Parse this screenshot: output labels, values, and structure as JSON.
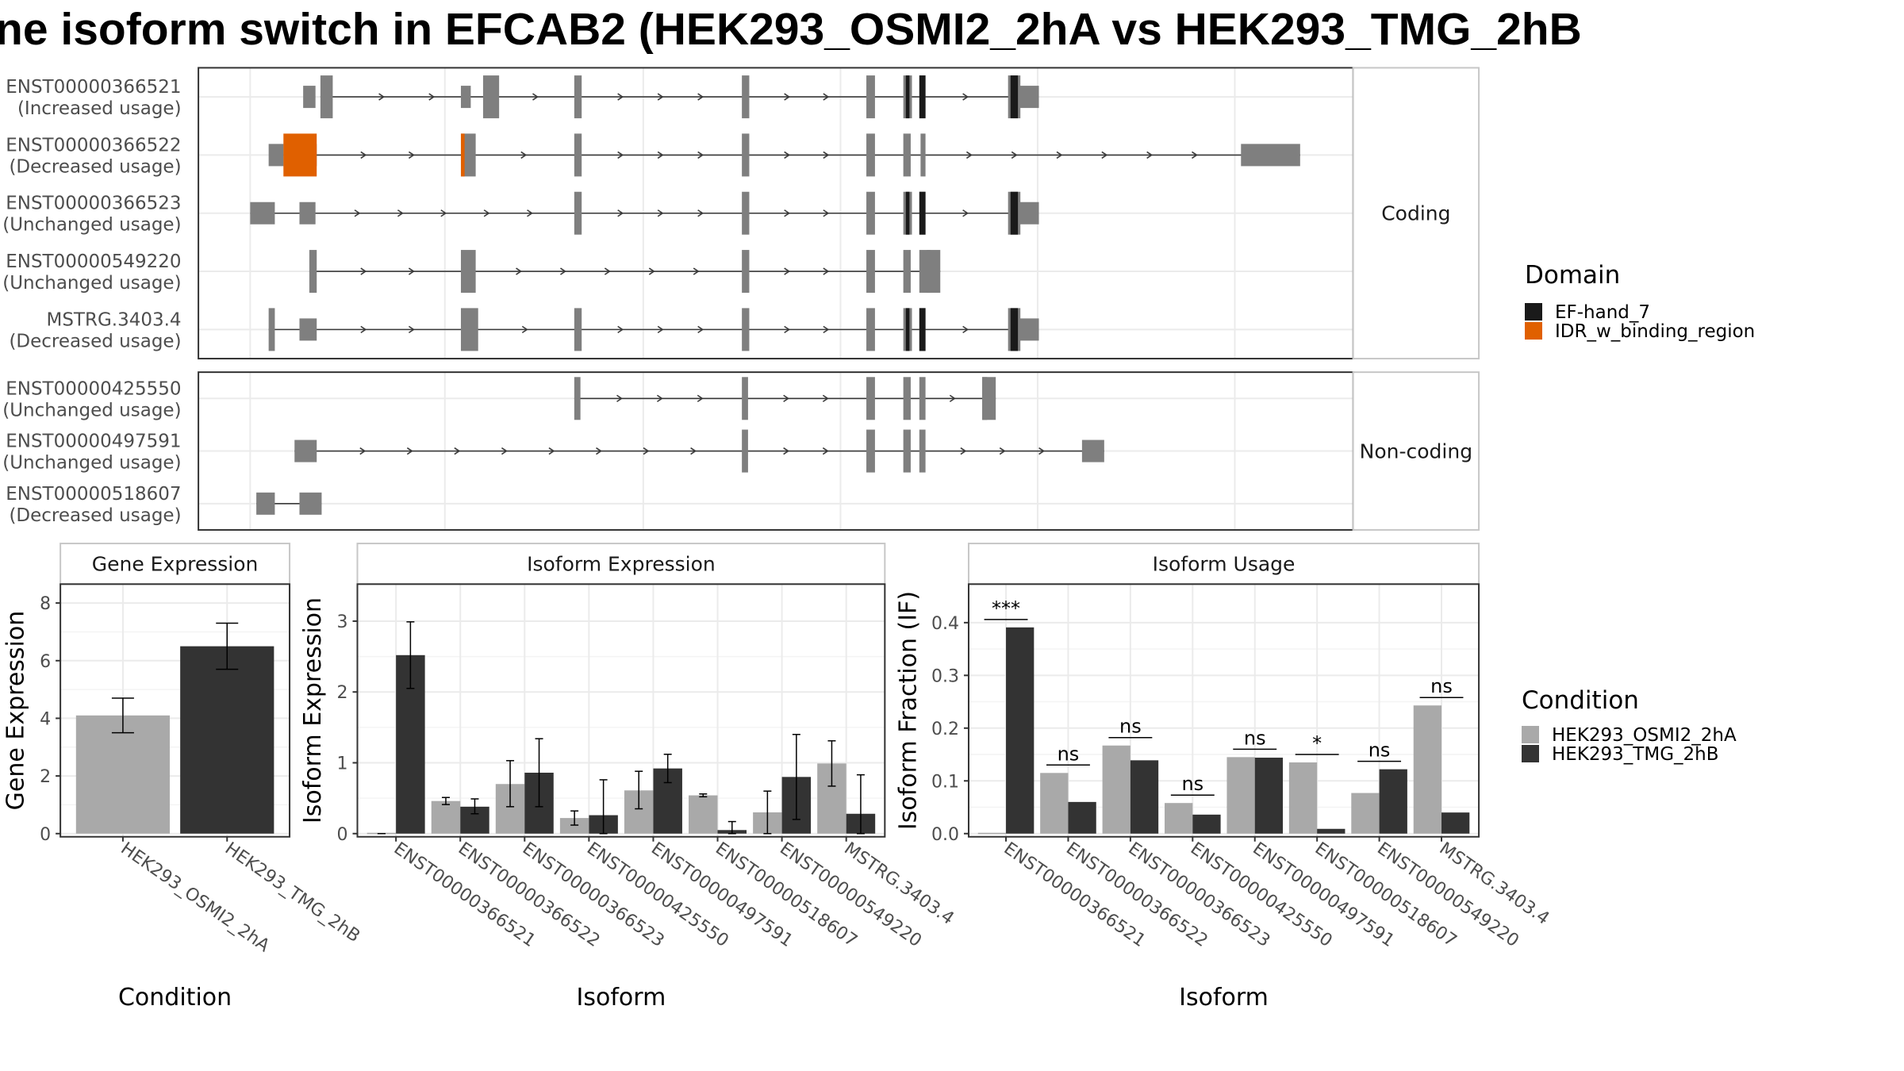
{
  "title": "ne isoform switch in EFCAB2 (HEK293_OSMI2_2hA vs HEK293_TMG_2hB",
  "colors": {
    "exon": "#7f7f7f",
    "line": "#3a3a3a",
    "ef_hand": "#1a1a1a",
    "idr": "#e06000",
    "cond1": "#a9a9a9",
    "cond2": "#333333",
    "grid": "#ebebeb",
    "panel_border": "#333333",
    "strip_border": "#c7c7c7"
  },
  "structure": {
    "coding_label": "Coding",
    "noncoding_label": "Non-coding",
    "coding": [
      {
        "name": "ENST00000366521",
        "usage": "(Increased usage)",
        "exons": [
          [
            260,
            270
          ],
          [
            392,
            405
          ],
          [
            466,
            472
          ],
          [
            602,
            608
          ],
          [
            703,
            710
          ],
          [
            733,
            740
          ],
          [
            746,
            751
          ],
          [
            818,
            828
          ],
          [
            826,
            843
          ]
        ],
        "domains": [
          {
            "type": "ef_hand",
            "range": [
              735,
              738
            ]
          },
          {
            "type": "ef_hand",
            "range": [
              746,
              751
            ]
          },
          {
            "type": "ef_hand",
            "range": [
              820,
              826
            ]
          }
        ],
        "thin": [
          [
            246,
            256
          ],
          [
            374,
            382
          ]
        ]
      },
      {
        "name": "ENST00000366522",
        "usage": "(Decreased usage)",
        "exons": [
          [
            230,
            257
          ],
          [
            374,
            386
          ],
          [
            466,
            472
          ],
          [
            602,
            608
          ],
          [
            703,
            710
          ],
          [
            733,
            739
          ],
          [
            747,
            751
          ],
          [
            1007,
            1055
          ]
        ],
        "domains": [
          {
            "type": "idr",
            "range": [
              230,
              257
            ]
          },
          {
            "type": "idr",
            "range": [
              374,
              377
            ]
          }
        ],
        "thin": [
          [
            218,
            230
          ]
        ]
      },
      {
        "name": "ENST00000366523",
        "usage": "(Unchanged usage)",
        "exons": [
          [
            203,
            223
          ],
          [
            243,
            256
          ],
          [
            466,
            472
          ],
          [
            602,
            608
          ],
          [
            703,
            710
          ],
          [
            733,
            740
          ],
          [
            746,
            751
          ],
          [
            818,
            828
          ],
          [
            826,
            843
          ]
        ],
        "domains": [
          {
            "type": "ef_hand",
            "range": [
              735,
              738
            ]
          },
          {
            "type": "ef_hand",
            "range": [
              746,
              751
            ]
          },
          {
            "type": "ef_hand",
            "range": [
              820,
              826
            ]
          }
        ],
        "thin": []
      },
      {
        "name": "ENST00000549220",
        "usage": "(Unchanged usage)",
        "exons": [
          [
            251,
            257
          ],
          [
            374,
            386
          ],
          [
            602,
            608
          ],
          [
            703,
            710
          ],
          [
            733,
            739
          ],
          [
            746,
            755
          ],
          [
            752,
            763
          ]
        ],
        "domains": [],
        "thin": []
      },
      {
        "name": "MSTRG.3403.4",
        "usage": "(Decreased usage)",
        "exons": [
          [
            218,
            223
          ],
          [
            243,
            257
          ],
          [
            374,
            388
          ],
          [
            466,
            472
          ],
          [
            602,
            608
          ],
          [
            703,
            710
          ],
          [
            733,
            740
          ],
          [
            746,
            751
          ],
          [
            818,
            828
          ],
          [
            826,
            843
          ]
        ],
        "domains": [
          {
            "type": "ef_hand",
            "range": [
              735,
              738
            ]
          },
          {
            "type": "ef_hand",
            "range": [
              746,
              751
            ]
          },
          {
            "type": "ef_hand",
            "range": [
              820,
              826
            ]
          }
        ],
        "thin": []
      }
    ],
    "noncoding": [
      {
        "name": "ENST00000425550",
        "usage": "(Unchanged usage)",
        "exons": [
          [
            466,
            471
          ],
          [
            602,
            607
          ],
          [
            703,
            710
          ],
          [
            733,
            739
          ],
          [
            746,
            751
          ],
          [
            797,
            801
          ],
          [
            797,
            808
          ]
        ],
        "domains": [],
        "thin": []
      },
      {
        "name": "ENST00000497591",
        "usage": "(Unchanged usage)",
        "exons": [
          [
            239,
            257
          ],
          [
            602,
            607
          ],
          [
            703,
            710
          ],
          [
            733,
            739
          ],
          [
            746,
            751
          ],
          [
            878,
            896
          ]
        ],
        "domains": [],
        "thin": []
      },
      {
        "name": "ENST00000518607",
        "usage": "(Decreased usage)",
        "exons": [
          [
            208,
            223
          ],
          [
            243,
            261
          ]
        ],
        "domains": [],
        "thin": []
      }
    ]
  },
  "legend_domain": {
    "title": "Domain",
    "items": [
      {
        "label": "EF-hand_7",
        "color": "#1a1a1a"
      },
      {
        "label": "IDR_w_binding_region",
        "color": "#e06000"
      }
    ]
  },
  "legend_condition": {
    "title": "Condition",
    "items": [
      {
        "label": "HEK293_OSMI2_2hA",
        "color": "#a9a9a9"
      },
      {
        "label": "HEK293_TMG_2hB",
        "color": "#333333"
      }
    ]
  },
  "chart_data": [
    {
      "type": "bar",
      "title": "Gene Expression",
      "xlabel": "Condition",
      "ylabel": "Gene Expression",
      "ylim": [
        0,
        8.6
      ],
      "yticks": [
        0,
        2,
        4,
        6,
        8
      ],
      "categories": [
        "HEK293_OSMI2_2hA",
        "HEK293_TMG_2hB"
      ],
      "values": [
        4.1,
        6.5
      ],
      "errors": [
        [
          3.5,
          4.7
        ],
        [
          5.7,
          7.3
        ]
      ]
    },
    {
      "type": "bar",
      "title": "Isoform Expression",
      "xlabel": "Isoform",
      "ylabel": "Isoform Expression",
      "ylim": [
        0,
        3.5
      ],
      "yticks": [
        0,
        1,
        2,
        3
      ],
      "categories": [
        "ENST00000366521",
        "ENST00000366522",
        "ENST00000366523",
        "ENST00000425550",
        "ENST00000497591",
        "ENST00000518607",
        "ENST00000549220",
        "MSTRG.3403.4"
      ],
      "series": [
        {
          "name": "HEK293_OSMI2_2hA",
          "values": [
            0.0,
            0.46,
            0.7,
            0.22,
            0.61,
            0.54,
            0.3,
            0.99
          ],
          "errors": [
            [
              0.0,
              0.0
            ],
            [
              0.41,
              0.51
            ],
            [
              0.38,
              1.03
            ],
            [
              0.12,
              0.32
            ],
            [
              0.35,
              0.88
            ],
            [
              0.52,
              0.56
            ],
            [
              0.0,
              0.6
            ],
            [
              0.67,
              1.31
            ]
          ]
        },
        {
          "name": "HEK293_TMG_2hB",
          "values": [
            2.52,
            0.38,
            0.86,
            0.26,
            0.92,
            0.05,
            0.8,
            0.28
          ],
          "errors": [
            [
              2.05,
              2.99
            ],
            [
              0.28,
              0.49
            ],
            [
              0.38,
              1.34
            ],
            [
              0.0,
              0.76
            ],
            [
              0.72,
              1.12
            ],
            [
              0.0,
              0.17
            ],
            [
              0.2,
              1.4
            ],
            [
              0.0,
              0.83
            ]
          ]
        }
      ]
    },
    {
      "type": "bar",
      "title": "Isoform Usage",
      "xlabel": "Isoform",
      "ylabel": "Isoform Fraction (IF)",
      "ylim": [
        0,
        0.47
      ],
      "yticks": [
        0.0,
        0.1,
        0.2,
        0.3,
        0.4
      ],
      "categories": [
        "ENST00000366521",
        "ENST00000366522",
        "ENST00000366523",
        "ENST00000425550",
        "ENST00000497591",
        "ENST00000518607",
        "ENST00000549220",
        "MSTRG.3403.4"
      ],
      "series": [
        {
          "name": "HEK293_OSMI2_2hA",
          "values": [
            0.0,
            0.115,
            0.167,
            0.058,
            0.145,
            0.135,
            0.077,
            0.243
          ]
        },
        {
          "name": "HEK293_TMG_2hB",
          "values": [
            0.391,
            0.06,
            0.139,
            0.036,
            0.144,
            0.009,
            0.122,
            0.04
          ]
        }
      ],
      "significance": [
        "***",
        "ns",
        "ns",
        "ns",
        "ns",
        "*",
        "ns",
        "ns"
      ]
    }
  ]
}
